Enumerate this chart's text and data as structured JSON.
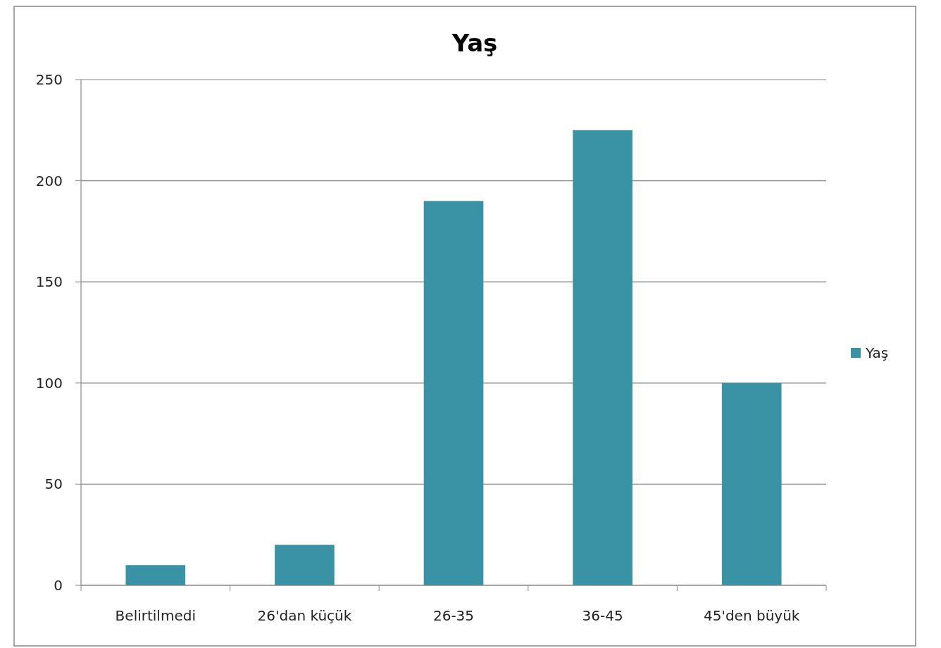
{
  "chart_data": {
    "type": "bar",
    "title": "Yaş",
    "categories": [
      "Belirtilmedi",
      "26'dan küçük",
      "26-35",
      "36-45",
      "45'den büyük"
    ],
    "series": [
      {
        "name": "Yaş",
        "color": "#3a93a5",
        "values": [
          10,
          20,
          190,
          225,
          100
        ]
      }
    ],
    "ylim": [
      0,
      250
    ],
    "yticks": [
      0,
      50,
      100,
      150,
      200,
      250
    ],
    "grid": "y",
    "legend": "right"
  }
}
